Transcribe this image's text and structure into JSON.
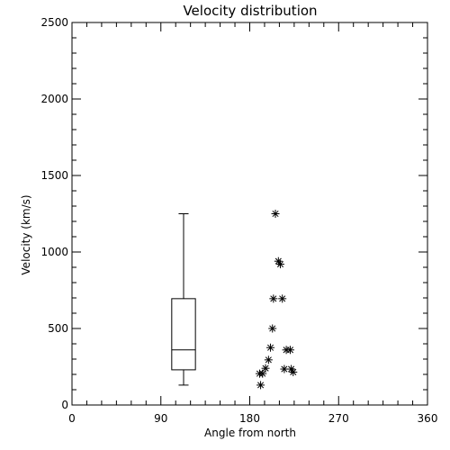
{
  "chart_data": {
    "type": "scatter",
    "title": "Velocity distribution",
    "xlabel": "Angle from north",
    "ylabel": "Velocity (km/s)",
    "xlim": [
      0,
      360
    ],
    "ylim": [
      0,
      2500
    ],
    "xticks": [
      0,
      90,
      180,
      270,
      360
    ],
    "yticks": [
      0,
      500,
      1000,
      1500,
      2000,
      2500
    ],
    "xtick_labels": [
      "0",
      "90",
      "180",
      "270",
      "360"
    ],
    "ytick_labels": [
      "0",
      "500",
      "1000",
      "1500",
      "2000",
      "2500"
    ],
    "x_minor_step": 15,
    "y_minor_step": 100,
    "grid": false,
    "legend": "none",
    "boxplot": {
      "x": 113,
      "half_width": 12,
      "whisker_low": 130,
      "q1": 230,
      "median": 360,
      "q3": 695,
      "whisker_high": 1250
    },
    "points": [
      {
        "x": 206,
        "y": 1250
      },
      {
        "x": 209,
        "y": 940
      },
      {
        "x": 211,
        "y": 920
      },
      {
        "x": 204,
        "y": 695
      },
      {
        "x": 213,
        "y": 695
      },
      {
        "x": 203,
        "y": 500
      },
      {
        "x": 201,
        "y": 375
      },
      {
        "x": 217,
        "y": 360
      },
      {
        "x": 221,
        "y": 360
      },
      {
        "x": 199,
        "y": 295
      },
      {
        "x": 196,
        "y": 240
      },
      {
        "x": 215,
        "y": 235
      },
      {
        "x": 222,
        "y": 235
      },
      {
        "x": 224,
        "y": 215
      },
      {
        "x": 193,
        "y": 205
      },
      {
        "x": 190,
        "y": 205
      },
      {
        "x": 191,
        "y": 130
      }
    ]
  }
}
